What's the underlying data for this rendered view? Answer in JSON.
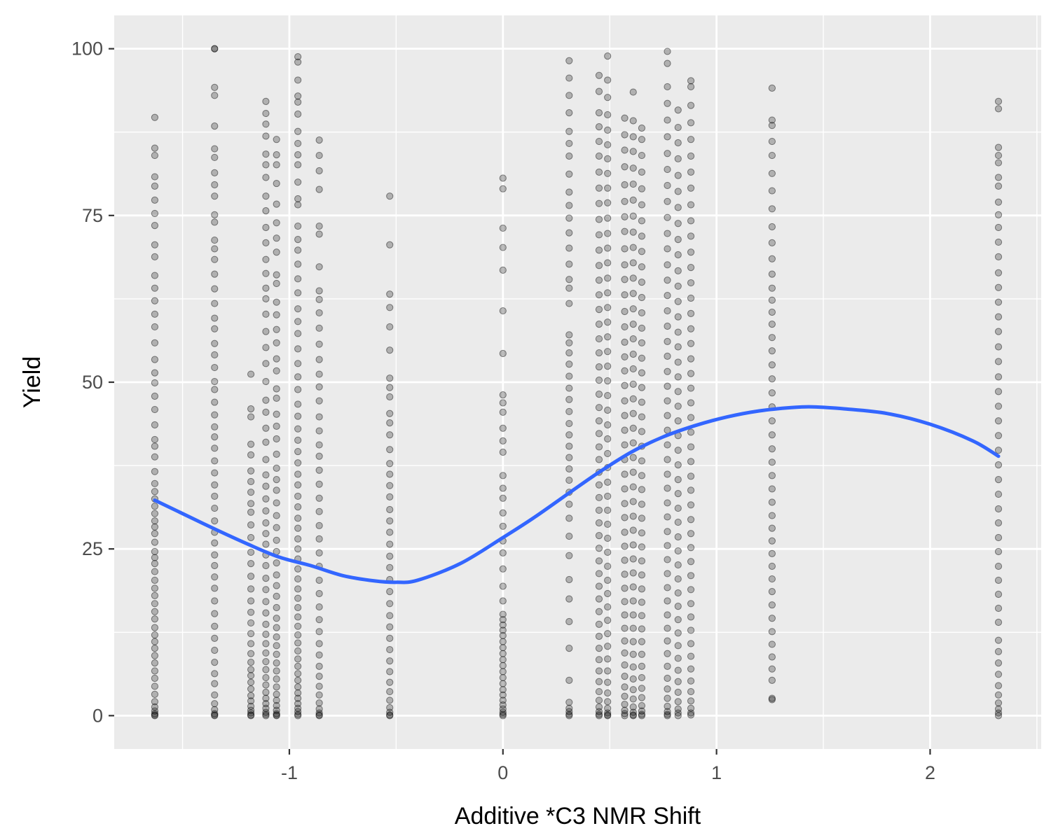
{
  "chart_data": {
    "type": "scatter",
    "title": "",
    "xlabel": "Additive *C3 NMR Shift",
    "ylabel": "Yield",
    "xlim": [
      -1.82,
      2.52
    ],
    "ylim": [
      -5,
      105
    ],
    "x_ticks": [
      -1,
      0,
      1,
      2
    ],
    "x_tick_labels": [
      "-1",
      "0",
      "1",
      "2"
    ],
    "y_ticks": [
      0,
      25,
      50,
      75,
      100
    ],
    "y_tick_labels": [
      "0",
      "25",
      "50",
      "75",
      "100"
    ],
    "grid": true,
    "legend": "none",
    "panel_color": "#ebebeb",
    "grid_color": "#ffffff",
    "point_color": "#000000",
    "point_alpha": 0.25,
    "smooth_color": "#3366ff",
    "x_categories": [
      -1.63,
      -1.35,
      -1.18,
      -1.11,
      -1.06,
      -0.96,
      -0.86,
      -0.53,
      0.0,
      0.31,
      0.45,
      0.49,
      0.57,
      0.61,
      0.65,
      0.77,
      0.82,
      0.88,
      1.26,
      2.32
    ],
    "point_columns": [
      {
        "x": -1.63,
        "yields": [
          89.7,
          85.1,
          84.0,
          80.8,
          79.4,
          77.3,
          75.3,
          73.5,
          70.6,
          68.8,
          66.0,
          64.1,
          62.2,
          60.2,
          58.3,
          55.9,
          53.4,
          51.4,
          49.9,
          47.9,
          45.9,
          43.6,
          41.4,
          40.4,
          38.8,
          36.6,
          34.8,
          33.6,
          32.5,
          31.4,
          30.3,
          29.2,
          28.3,
          27.3,
          26.0,
          24.6,
          23.7,
          22.8,
          21.6,
          20.3,
          19.1,
          18.0,
          16.8,
          15.6,
          14.5,
          13.2,
          12.1,
          11.1,
          10.1,
          9.0,
          7.9,
          6.7,
          5.6,
          4.4,
          3.2,
          2.1,
          1.3,
          0.7,
          0.3,
          0.1,
          0.0
        ]
      },
      {
        "x": -1.35,
        "yields": [
          100.0,
          100.0,
          94.2,
          93.0,
          88.4,
          85.0,
          83.7,
          81.4,
          79.6,
          77.9,
          75.1,
          74.0,
          71.3,
          70.0,
          68.4,
          66.2,
          64.0,
          61.8,
          59.6,
          58.0,
          55.8,
          54.1,
          52.2,
          50.1,
          48.9,
          47.0,
          45.1,
          43.3,
          41.8,
          40.1,
          38.2,
          36.4,
          34.6,
          32.9,
          31.1,
          29.2,
          27.5,
          25.9,
          24.1,
          22.5,
          20.8,
          19.1,
          17.2,
          15.3,
          13.4,
          11.6,
          9.8,
          8.0,
          6.3,
          4.8,
          3.1,
          1.8,
          0.9,
          0.3,
          0.1,
          0.0
        ]
      },
      {
        "x": -1.18,
        "yields": [
          51.2,
          46.0,
          44.8,
          40.7,
          39.1,
          36.7,
          35.1,
          33.5,
          31.8,
          30.5,
          28.6,
          26.7,
          24.5,
          22.8,
          20.9,
          19.0,
          17.2,
          15.5,
          13.9,
          12.3,
          10.8,
          9.3,
          8.0,
          6.9,
          6.0,
          5.0,
          4.0,
          3.0,
          2.2,
          1.4,
          0.8,
          0.4,
          0.1,
          0.0
        ]
      },
      {
        "x": -1.11,
        "yields": [
          92.1,
          90.3,
          88.7,
          86.9,
          84.2,
          82.6,
          80.7,
          77.9,
          75.7,
          73.2,
          70.9,
          68.4,
          66.3,
          64.1,
          62.5,
          60.2,
          57.6,
          55.2,
          52.8,
          50.1,
          47.3,
          45.5,
          43.1,
          41.0,
          38.4,
          36.1,
          34.4,
          32.5,
          30.7,
          28.9,
          27.3,
          25.7,
          24.1,
          22.5,
          20.6,
          18.9,
          17.1,
          15.4,
          13.7,
          12.2,
          10.8,
          9.4,
          8.1,
          6.9,
          5.7,
          4.6,
          3.5,
          2.6,
          1.8,
          1.1,
          0.5,
          0.2,
          0.0
        ]
      },
      {
        "x": -1.06,
        "yields": [
          86.4,
          84.1,
          82.6,
          79.8,
          76.7,
          73.9,
          71.6,
          69.5,
          66.1,
          64.8,
          62.0,
          60.1,
          57.9,
          55.9,
          53.5,
          51.7,
          49.0,
          47.6,
          45.2,
          43.4,
          41.5,
          39.2,
          37.1,
          35.4,
          33.8,
          31.9,
          30.0,
          28.2,
          26.3,
          24.6,
          22.9,
          21.1,
          19.5,
          17.9,
          16.2,
          14.6,
          13.2,
          11.8,
          10.5,
          9.2,
          7.9,
          6.7,
          5.5,
          4.3,
          3.2,
          2.3,
          1.5,
          0.8,
          0.3,
          0.1,
          0.0
        ]
      },
      {
        "x": -0.96,
        "yields": [
          98.8,
          98.0,
          95.3,
          92.9,
          92.0,
          90.2,
          87.6,
          85.8,
          84.1,
          82.6,
          80.0,
          77.5,
          76.6,
          73.4,
          71.4,
          69.8,
          67.7,
          65.5,
          63.4,
          61.0,
          59.1,
          57.3,
          55.0,
          52.8,
          50.8,
          48.9,
          46.7,
          44.9,
          43.0,
          41.3,
          39.6,
          37.9,
          36.2,
          34.6,
          32.9,
          31.3,
          29.6,
          28.1,
          26.5,
          25.0,
          23.5,
          22.0,
          20.5,
          19.0,
          17.6,
          16.2,
          14.8,
          13.4,
          12.1,
          10.9,
          9.7,
          8.5,
          7.4,
          6.3,
          5.3,
          4.3,
          3.4,
          2.6,
          1.8,
          1.1,
          0.6,
          0.2,
          0.0
        ]
      },
      {
        "x": -0.86,
        "yields": [
          86.3,
          84.0,
          81.7,
          78.9,
          73.4,
          72.2,
          67.3,
          63.7,
          62.4,
          60.4,
          58.1,
          55.7,
          53.4,
          51.2,
          49.3,
          47.2,
          44.8,
          42.7,
          40.6,
          38.9,
          36.8,
          34.7,
          32.6,
          30.6,
          28.5,
          26.5,
          24.4,
          22.4,
          20.3,
          18.3,
          16.3,
          14.4,
          12.6,
          10.8,
          9.1,
          7.4,
          5.9,
          4.4,
          3.1,
          1.9,
          1.0,
          0.4,
          0.1,
          0.0
        ]
      },
      {
        "x": -0.53,
        "yields": [
          77.9,
          70.6,
          63.2,
          61.2,
          58.3,
          54.8,
          50.6,
          49.2,
          47.8,
          45.3,
          43.9,
          42.1,
          39.9,
          37.8,
          36.2,
          34.5,
          32.8,
          30.9,
          29.2,
          27.5,
          25.7,
          23.9,
          22.2,
          20.4,
          18.6,
          16.8,
          15.0,
          13.3,
          11.6,
          9.9,
          8.2,
          6.6,
          5.0,
          3.6,
          2.3,
          1.2,
          0.5,
          0.1,
          0.0
        ]
      },
      {
        "x": 0.0,
        "yields": [
          80.6,
          79.0,
          73.1,
          70.2,
          66.8,
          60.7,
          54.3,
          48.1,
          46.9,
          45.5,
          43.1,
          41.2,
          39.5,
          36.0,
          34.1,
          32.6,
          30.4,
          28.4,
          26.2,
          24.4,
          22.0,
          19.4,
          17.2,
          15.2,
          14.4,
          13.6,
          12.8,
          12.0,
          11.1,
          10.2,
          9.3,
          8.4,
          7.5,
          6.6,
          5.7,
          4.8,
          3.9,
          3.1,
          2.3,
          1.6,
          1.0,
          0.5,
          0.2,
          0.0
        ]
      },
      {
        "x": 0.31,
        "yields": [
          98.2,
          95.6,
          93.0,
          90.4,
          87.6,
          85.8,
          83.9,
          81.2,
          78.5,
          76.5,
          74.6,
          72.4,
          70.1,
          67.7,
          65.4,
          64.1,
          61.8,
          57.1,
          55.9,
          54.4,
          52.7,
          50.9,
          49.1,
          47.4,
          45.6,
          43.8,
          42.1,
          40.4,
          38.7,
          37.0,
          35.3,
          33.5,
          31.7,
          29.6,
          26.9,
          24.0,
          20.4,
          17.5,
          14.1,
          10.1,
          5.3,
          2.0,
          1.1,
          0.6,
          0.2,
          0.0
        ]
      },
      {
        "x": 0.45,
        "yields": [
          96.0,
          93.6,
          90.4,
          88.3,
          86.1,
          83.9,
          81.5,
          79.1,
          76.8,
          74.4,
          72.1,
          69.8,
          67.5,
          65.3,
          63.1,
          60.9,
          58.7,
          56.5,
          54.4,
          52.3,
          50.3,
          48.2,
          46.2,
          44.2,
          42.3,
          40.3,
          38.4,
          36.5,
          34.6,
          32.7,
          30.8,
          28.9,
          27.0,
          25.1,
          23.2,
          21.3,
          19.4,
          17.5,
          15.6,
          13.7,
          11.9,
          10.1,
          8.4,
          6.7,
          5.1,
          3.6,
          2.3,
          1.3,
          0.6,
          0.2,
          0.0
        ]
      },
      {
        "x": 0.49,
        "yields": [
          98.9,
          95.3,
          92.7,
          90.1,
          87.8,
          85.6,
          83.5,
          81.3,
          79.1,
          76.9,
          74.6,
          72.3,
          70.1,
          67.9,
          65.6,
          63.4,
          61.2,
          59.0,
          56.8,
          54.6,
          52.4,
          50.2,
          48.0,
          45.8,
          43.6,
          41.5,
          39.3,
          37.2,
          35.0,
          32.9,
          30.8,
          28.7,
          26.6,
          24.5,
          22.4,
          20.3,
          18.3,
          16.3,
          14.3,
          12.3,
          10.4,
          8.5,
          6.7,
          5.0,
          3.4,
          2.1,
          1.1,
          0.4,
          0.1,
          0.0
        ]
      },
      {
        "x": 0.57,
        "yields": [
          89.6,
          87.1,
          84.8,
          82.3,
          79.6,
          77.1,
          74.8,
          72.6,
          70.0,
          67.6,
          65.4,
          63.1,
          60.6,
          58.3,
          56.0,
          53.8,
          51.7,
          49.5,
          47.2,
          45.0,
          42.8,
          40.6,
          38.4,
          36.2,
          34.0,
          31.8,
          29.7,
          27.5,
          25.4,
          23.3,
          21.2,
          19.1,
          17.1,
          15.1,
          13.1,
          11.2,
          9.4,
          7.6,
          5.9,
          4.3,
          2.9,
          1.7,
          0.8,
          0.3,
          0.0
        ]
      },
      {
        "x": 0.61,
        "yields": [
          93.5,
          89.2,
          86.8,
          84.6,
          82.1,
          79.7,
          77.3,
          74.9,
          72.5,
          70.2,
          67.9,
          65.6,
          63.3,
          61.0,
          58.7,
          56.5,
          54.2,
          52.0,
          49.7,
          47.5,
          45.3,
          43.1,
          40.9,
          38.7,
          36.5,
          34.3,
          32.1,
          29.9,
          27.8,
          25.6,
          23.5,
          21.4,
          19.3,
          17.2,
          15.1,
          13.1,
          11.1,
          9.2,
          7.3,
          5.5,
          3.9,
          2.5,
          1.3,
          0.5,
          0.1,
          0.0
        ]
      },
      {
        "x": 0.65,
        "yields": [
          88.1,
          86.4,
          84.0,
          81.5,
          79.0,
          76.6,
          74.2,
          71.9,
          69.6,
          67.3,
          65.0,
          62.7,
          60.4,
          58.1,
          55.9,
          53.6,
          51.4,
          49.2,
          47.0,
          44.8,
          42.6,
          40.4,
          38.2,
          36.0,
          33.9,
          31.7,
          29.6,
          27.4,
          25.3,
          23.2,
          21.1,
          19.0,
          17.0,
          15.0,
          13.0,
          11.1,
          9.2,
          7.4,
          5.7,
          4.1,
          2.7,
          1.5,
          0.7,
          0.2,
          0.0
        ]
      },
      {
        "x": 0.77,
        "yields": [
          99.6,
          97.8,
          94.3,
          91.8,
          89.3,
          86.8,
          84.3,
          81.9,
          79.5,
          77.1,
          74.7,
          72.3,
          70.0,
          67.6,
          65.3,
          63.0,
          60.7,
          58.4,
          56.1,
          53.9,
          51.6,
          49.4,
          47.2,
          45.0,
          42.8,
          40.6,
          38.4,
          36.2,
          34.1,
          31.9,
          29.8,
          27.6,
          25.5,
          23.4,
          21.3,
          19.2,
          17.2,
          15.1,
          13.1,
          11.2,
          9.3,
          7.4,
          5.6,
          4.0,
          2.6,
          1.4,
          0.6,
          0.2,
          0.0
        ]
      },
      {
        "x": 0.82,
        "yields": [
          90.8,
          88.2,
          85.9,
          83.5,
          81.0,
          78.6,
          76.2,
          73.8,
          71.4,
          69.1,
          66.7,
          64.4,
          62.1,
          59.8,
          57.5,
          55.3,
          53.0,
          50.8,
          48.6,
          46.4,
          44.2,
          42.0,
          39.8,
          37.6,
          35.4,
          33.3,
          31.1,
          29.0,
          26.8,
          24.7,
          22.6,
          20.5,
          18.4,
          16.4,
          14.4,
          12.4,
          10.5,
          8.6,
          6.8,
          5.1,
          3.5,
          2.1,
          1.0,
          0.4,
          0.0
        ]
      },
      {
        "x": 0.88,
        "yields": [
          95.2,
          94.3,
          91.5,
          88.9,
          86.4,
          83.9,
          81.5,
          79.1,
          76.6,
          74.2,
          71.9,
          69.5,
          67.2,
          64.9,
          62.6,
          60.3,
          58.0,
          55.8,
          53.5,
          51.3,
          49.1,
          46.9,
          44.7,
          42.5,
          40.3,
          38.1,
          35.9,
          33.8,
          31.6,
          29.4,
          27.3,
          25.2,
          23.1,
          21.0,
          18.9,
          16.8,
          14.8,
          12.8,
          10.8,
          8.9,
          7.0,
          5.2,
          3.6,
          2.2,
          1.1,
          0.4,
          0.1
        ]
      },
      {
        "x": 1.26,
        "yields": [
          94.1,
          89.3,
          88.5,
          86.1,
          84.0,
          81.3,
          78.7,
          76.0,
          73.3,
          70.9,
          68.5,
          66.2,
          64.1,
          62.3,
          60.5,
          58.7,
          56.7,
          54.7,
          52.6,
          50.5,
          48.4,
          46.3,
          44.2,
          42.1,
          40.0,
          38.0,
          36.0,
          34.0,
          32.0,
          30.0,
          28.1,
          26.2,
          24.3,
          22.4,
          20.5,
          18.6,
          16.6,
          14.6,
          12.6,
          10.7,
          8.8,
          7.0,
          5.3,
          2.6,
          2.4
        ]
      },
      {
        "x": 2.32,
        "yields": [
          92.1,
          91.0,
          85.2,
          84.0,
          82.9,
          80.7,
          79.4,
          77.0,
          75.1,
          73.2,
          71.0,
          68.8,
          66.4,
          64.2,
          62.0,
          59.8,
          57.6,
          55.3,
          53.1,
          50.8,
          48.6,
          46.4,
          44.2,
          42.0,
          39.8,
          37.6,
          35.4,
          33.2,
          31.0,
          28.9,
          26.7,
          24.6,
          22.4,
          20.3,
          18.2,
          16.1,
          14.0,
          11.3,
          9.6,
          7.9,
          6.2,
          4.5,
          3.1,
          1.9,
          1.0,
          0.4,
          0.0
        ]
      }
    ],
    "smooth_line": {
      "x": [
        -1.63,
        -1.5,
        -1.35,
        -1.2,
        -1.05,
        -0.9,
        -0.75,
        -0.6,
        -0.5,
        -0.4,
        -0.2,
        0.0,
        0.15,
        0.31,
        0.45,
        0.6,
        0.75,
        0.9,
        1.05,
        1.2,
        1.35,
        1.45,
        1.6,
        1.8,
        2.0,
        2.2,
        2.32
      ],
      "y": [
        32.3,
        30.3,
        28.0,
        25.8,
        23.8,
        22.5,
        21.0,
        20.2,
        20.0,
        20.3,
        22.8,
        26.7,
        29.8,
        33.4,
        36.5,
        39.5,
        41.8,
        43.5,
        44.8,
        45.7,
        46.2,
        46.3,
        46.0,
        45.3,
        43.7,
        41.2,
        38.9
      ]
    }
  }
}
